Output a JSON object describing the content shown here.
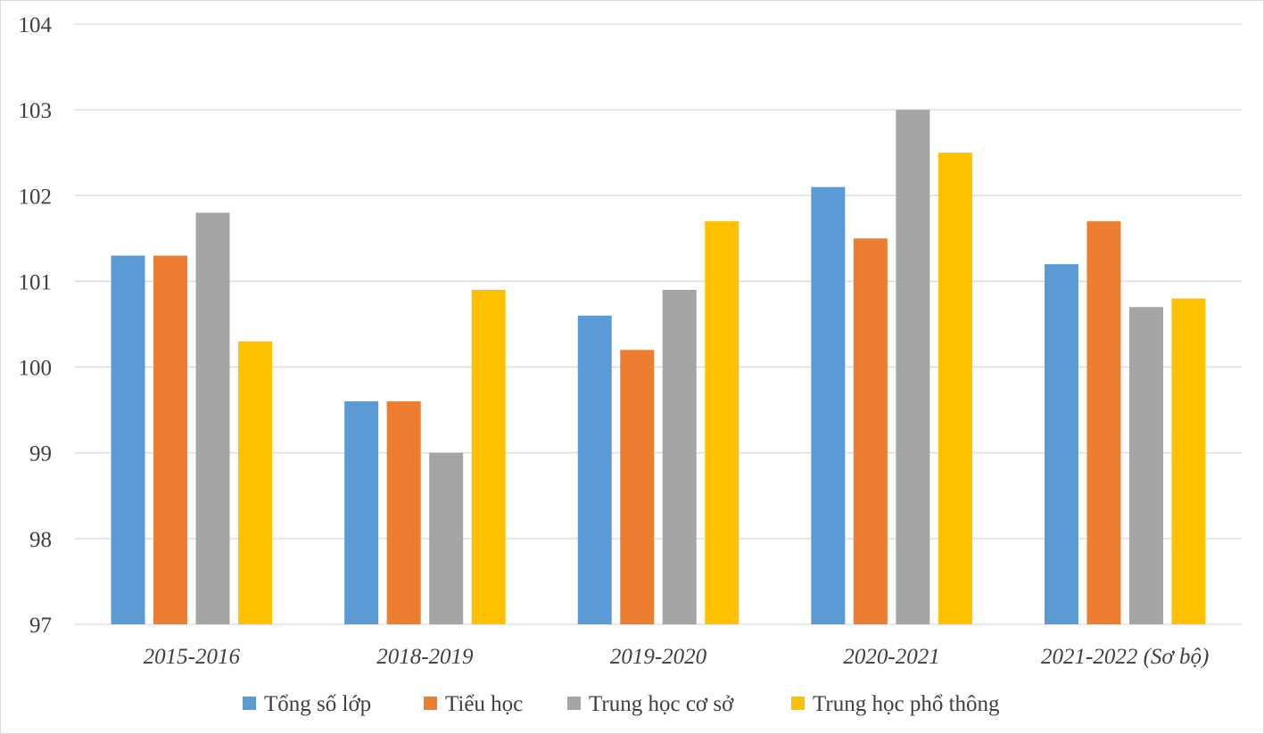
{
  "chart_data": {
    "type": "bar",
    "categories": [
      "2015-2016",
      "2018-2019",
      "2019-2020",
      "2020-2021",
      "2021-2022 (Sơ bộ)"
    ],
    "series": [
      {
        "name": "Tổng số lớp",
        "color": "#5b9bd5",
        "values": [
          101.3,
          99.6,
          100.6,
          102.1,
          101.2
        ]
      },
      {
        "name": "Tiểu học",
        "color": "#ed7d31",
        "values": [
          101.3,
          99.6,
          100.2,
          101.5,
          101.7
        ]
      },
      {
        "name": "Trung học cơ sở",
        "color": "#a5a5a5",
        "values": [
          101.8,
          99.0,
          100.9,
          103.0,
          100.7
        ]
      },
      {
        "name": "Trung học phổ thông",
        "color": "#ffc000",
        "values": [
          100.3,
          100.9,
          101.7,
          102.5,
          100.8
        ]
      }
    ],
    "y_ticks": [
      97,
      98,
      99,
      100,
      101,
      102,
      103,
      104
    ],
    "ylim": [
      97,
      104
    ],
    "grid": true,
    "legend_position": "bottom"
  }
}
